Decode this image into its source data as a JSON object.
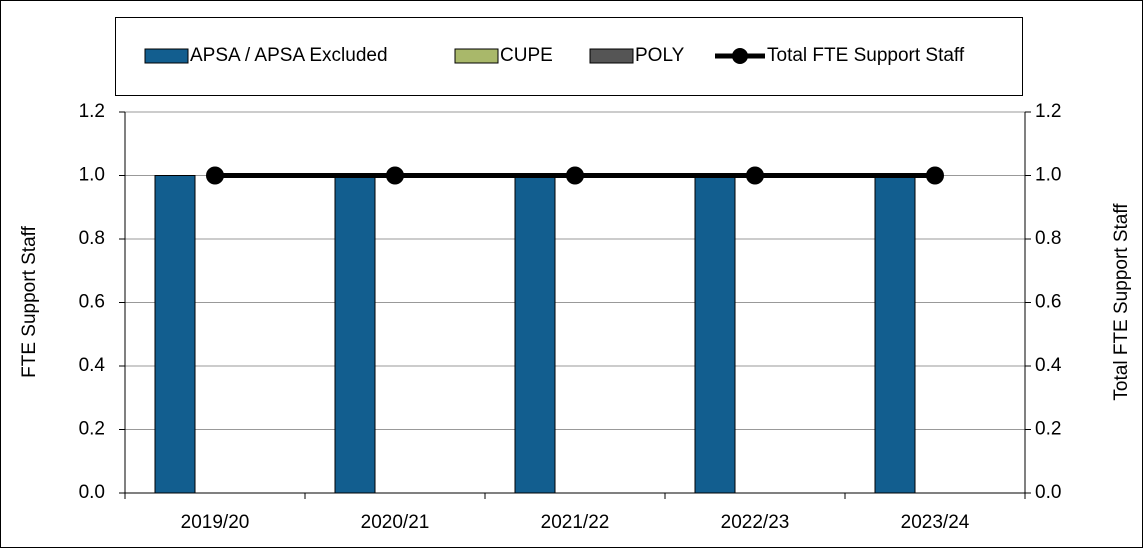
{
  "chart_data": {
    "type": "bar",
    "categories": [
      "2019/20",
      "2020/21",
      "2021/22",
      "2022/23",
      "2023/24"
    ],
    "series": [
      {
        "name": "APSA / APSA Excluded",
        "color": "#125e8f",
        "values": [
          1,
          1,
          1,
          1,
          1
        ]
      },
      {
        "name": "CUPE",
        "color": "#a9b86a",
        "values": [
          0,
          0,
          0,
          0,
          0
        ]
      },
      {
        "name": "POLY",
        "color": "#555555",
        "values": [
          0,
          0,
          0,
          0,
          0
        ]
      },
      {
        "name": "Total FTE Support Staff",
        "color": "#000000",
        "type": "line",
        "axis": "y2",
        "values": [
          1,
          1,
          1,
          1,
          1
        ]
      }
    ],
    "y_label": "FTE Support Staff",
    "y2_label": "Total FTE Support Staff",
    "ylim": [
      0,
      1.2
    ],
    "yticks": [
      {
        "value": 0,
        "label": "0.0"
      },
      {
        "value": 0.2,
        "label": "0.2"
      },
      {
        "value": 0.4,
        "label": "0.4"
      },
      {
        "value": 0.6,
        "label": "0.6"
      },
      {
        "value": 0.8,
        "label": "0.8"
      },
      {
        "value": 1,
        "label": "1.0"
      },
      {
        "value": 1.2,
        "label": "1.2"
      }
    ],
    "y2lim": [
      0,
      1.2
    ],
    "y2ticks": [
      {
        "value": 0,
        "label": "0.0"
      },
      {
        "value": 0.2,
        "label": "0.2"
      },
      {
        "value": 0.4,
        "label": "0.4"
      },
      {
        "value": 0.6,
        "label": "0.6"
      },
      {
        "value": 0.8,
        "label": "0.8"
      },
      {
        "value": 1,
        "label": "1.0"
      },
      {
        "value": 1.2,
        "label": "1.2"
      }
    ],
    "grid": true,
    "legend": "top"
  }
}
